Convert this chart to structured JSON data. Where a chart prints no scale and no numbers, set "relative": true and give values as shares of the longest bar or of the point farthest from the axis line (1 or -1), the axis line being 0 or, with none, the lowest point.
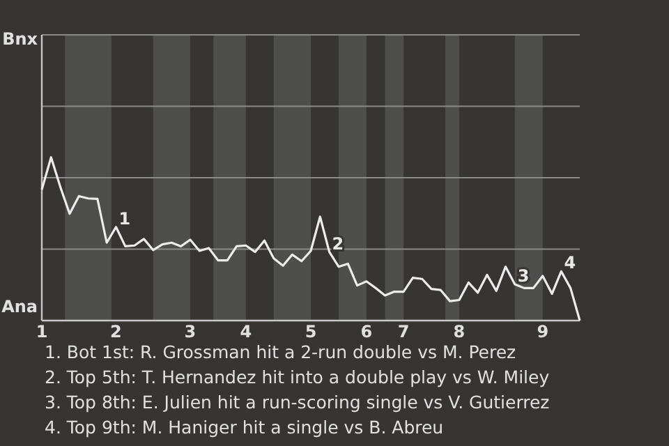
{
  "chart_data": {
    "type": "line",
    "relative": true,
    "categories": [
      "1",
      null,
      null,
      null,
      null,
      null,
      null,
      null,
      "2",
      null,
      null,
      null,
      null,
      null,
      null,
      null,
      "3",
      null,
      null,
      null,
      null,
      null,
      "4",
      null,
      null,
      null,
      null,
      null,
      null,
      "5",
      null,
      null,
      null,
      null,
      null,
      "6",
      null,
      null,
      null,
      "7",
      null,
      null,
      null,
      null,
      null,
      "8",
      null,
      null,
      null,
      null,
      null,
      null,
      null,
      null,
      "9",
      null,
      null,
      null,
      null
    ],
    "marker": "none",
    "ref_lines": [
      {
        "axis": "y",
        "value": 0.4375,
        "color": "#8a8a88"
      },
      {
        "axis": "y",
        "value": 0.875,
        "color": "#8a8a88"
      },
      {
        "axis": "y",
        "value": 1.3125,
        "color": "#8a8a88"
      },
      {
        "axis": "y",
        "value": 1.75,
        "color": "#8a8a88"
      }
    ],
    "series": [
      {
        "color": "#ececec",
        "values": [
          0.802,
          1,
          0.818,
          0.654,
          0.762,
          0.748,
          0.745,
          0.477,
          0.573,
          0.455,
          0.46,
          0.5,
          0.432,
          0.467,
          0.477,
          0.455,
          0.495,
          0.427,
          0.444,
          0.369,
          0.369,
          0.455,
          0.46,
          0.42,
          0.49,
          0.381,
          0.336,
          0.404,
          0.364,
          0.427,
          0.636,
          0.42,
          0.33,
          0.348,
          0.215,
          0.24,
          0.199,
          0.154,
          0.177,
          0.177,
          0.262,
          0.255,
          0.194,
          0.187,
          0.119,
          0.126,
          0.233,
          0.171,
          0.28,
          0.182,
          0.33,
          0.222,
          0.199,
          0.199,
          0.273,
          0.164,
          0.301,
          0.199,
          0
        ]
      }
    ],
    "annotations": [
      "Bnx",
      "Ana",
      "1. Bot 1st: R. Grossman hit a 2-run double vs M. Perez",
      "2. Top 5th: T. Hernandez hit into a double play vs W. Miley",
      "3. Top 8th: E. Julien hit a run-scoring single vs V. Gutierrez",
      "4. Top 9th: M. Haniger hit a single vs B. Abreu",
      {
        "text": "1",
        "y": 0.573
      },
      {
        "text": "2",
        "y": 0.42
      },
      {
        "text": "3",
        "y": 0.222
      },
      {
        "text": "4",
        "y": 0.301
      }
    ]
  }
}
